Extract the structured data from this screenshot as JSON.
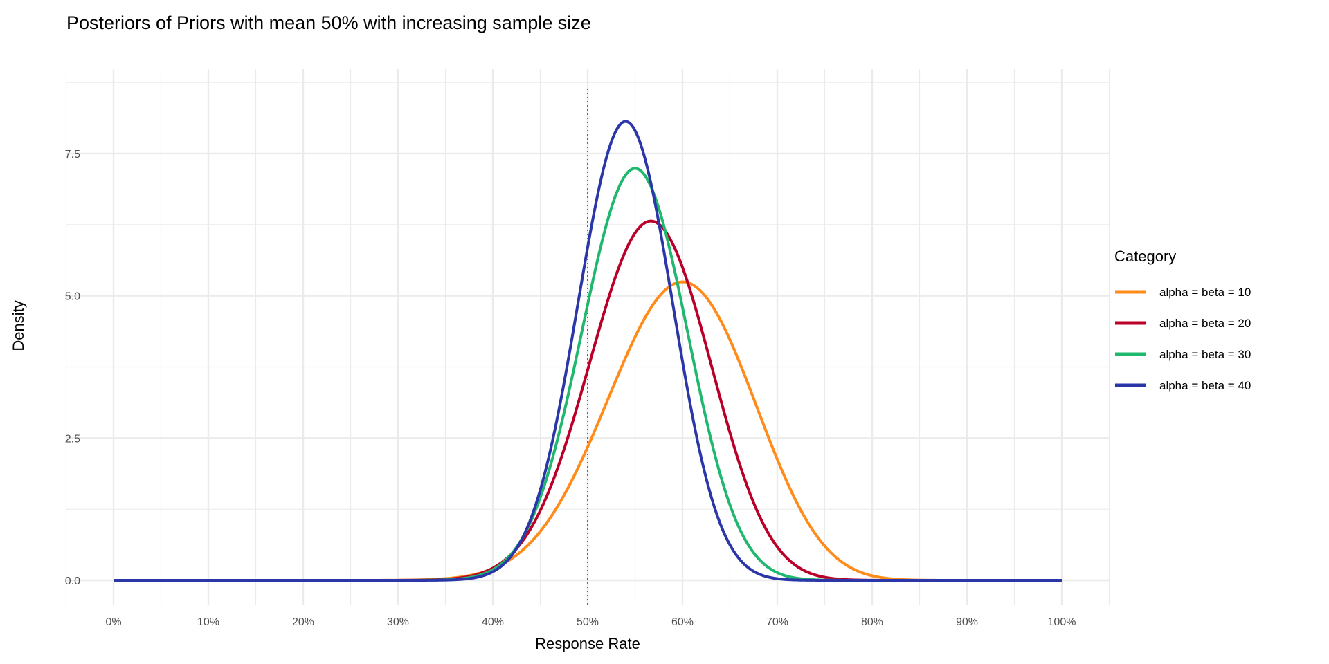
{
  "chart_data": {
    "type": "line",
    "title": "Posteriors of Priors with mean 50% with increasing sample size",
    "xlabel": "Response Rate",
    "ylabel": "Density",
    "xlim": [
      -5,
      105
    ],
    "ylim": [
      -0.43,
      9
    ],
    "x_ticks": [
      "0%",
      "10%",
      "20%",
      "30%",
      "40%",
      "50%",
      "60%",
      "70%",
      "80%",
      "90%",
      "100%"
    ],
    "x_tick_values": [
      0,
      10,
      20,
      30,
      40,
      50,
      60,
      70,
      80,
      90,
      100
    ],
    "y_ticks": [
      "0.0",
      "2.5",
      "5.0",
      "7.5"
    ],
    "y_tick_values": [
      0,
      2.5,
      5,
      7.5
    ],
    "grid": true,
    "legend": {
      "title": "Category",
      "placement": "right"
    },
    "reference_line": {
      "x": 50,
      "style": "dotted",
      "color": "#FF1F5B"
    },
    "series": [
      {
        "name": "alpha = beta = 10",
        "color": "#FF8C1A",
        "posterior_beta": [
          25,
          17
        ],
        "peak": {
          "x": 61,
          "y": 5.33
        }
      },
      {
        "name": "alpha = beta = 20",
        "color": "#BA0028",
        "posterior_beta": [
          35,
          27
        ],
        "peak": {
          "x": 57,
          "y": 6.38
        }
      },
      {
        "name": "alpha = beta = 30",
        "color": "#1FB86E",
        "posterior_beta": [
          45,
          37
        ],
        "peak": {
          "x": 55,
          "y": 7.3
        }
      },
      {
        "name": "alpha = beta = 40",
        "color": "#2B37A8",
        "posterior_beta": [
          55,
          47
        ],
        "peak": {
          "x": 54,
          "y": 8.12
        }
      }
    ]
  }
}
